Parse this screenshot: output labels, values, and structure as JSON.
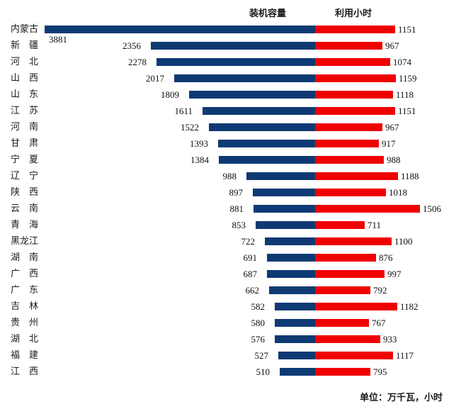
{
  "header": {
    "capacity_label": "装机容量",
    "hours_label": "利用小时"
  },
  "footer": {
    "unit_note": "单位：万千瓦，小时"
  },
  "colors": {
    "capacity_bar": "#0E3A74",
    "hours_bar": "#F00000",
    "text": "#1a1a1a"
  },
  "chart_data": {
    "type": "bar",
    "variant": "diverging-horizontal",
    "title": "",
    "categories": [
      "内蒙古",
      "新疆",
      "河北",
      "山西",
      "山东",
      "江苏",
      "河南",
      "甘肃",
      "宁夏",
      "辽宁",
      "陕西",
      "云南",
      "青海",
      "黑龙江",
      "湖南",
      "广西",
      "广东",
      "吉林",
      "贵州",
      "湖北",
      "福建",
      "江西"
    ],
    "series": [
      {
        "name": "装机容量",
        "direction": "left",
        "color": "#0E3A74",
        "values": [
          3881,
          2356,
          2278,
          2017,
          1809,
          1611,
          1522,
          1393,
          1384,
          988,
          897,
          881,
          853,
          722,
          691,
          687,
          662,
          582,
          580,
          576,
          527,
          510
        ]
      },
      {
        "name": "利用小时",
        "direction": "right",
        "color": "#F00000",
        "values": [
          1151,
          967,
          1074,
          1159,
          1118,
          1151,
          967,
          917,
          988,
          1188,
          1018,
          1506,
          711,
          1100,
          876,
          997,
          792,
          1182,
          767,
          933,
          1117,
          795
        ]
      }
    ],
    "value_labels": true,
    "axes_visible": false,
    "grid": false,
    "legend_position": "top",
    "unit_note": "单位：万千瓦，小时"
  }
}
